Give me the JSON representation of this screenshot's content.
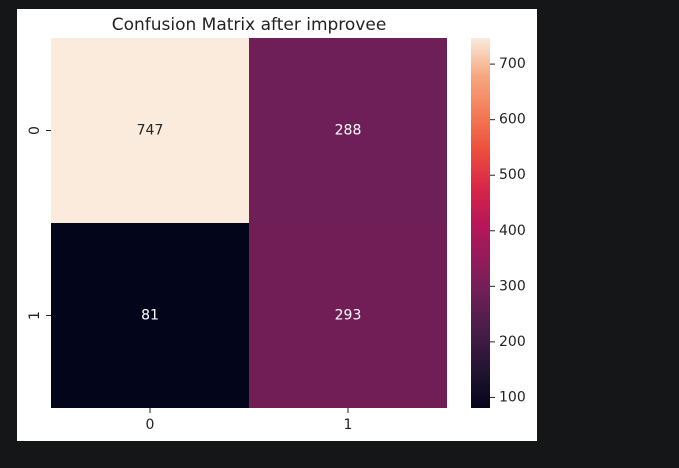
{
  "chart_data": {
    "type": "heatmap",
    "title": "Confusion Matrix after improvee",
    "x_categories": [
      "0",
      "1"
    ],
    "y_categories": [
      "0",
      "1"
    ],
    "values": [
      [
        747,
        288
      ],
      [
        81,
        293
      ]
    ],
    "colormap": "rocket",
    "clim": [
      81,
      747
    ],
    "cticks": [
      100,
      200,
      300,
      400,
      500,
      600,
      700
    ]
  }
}
